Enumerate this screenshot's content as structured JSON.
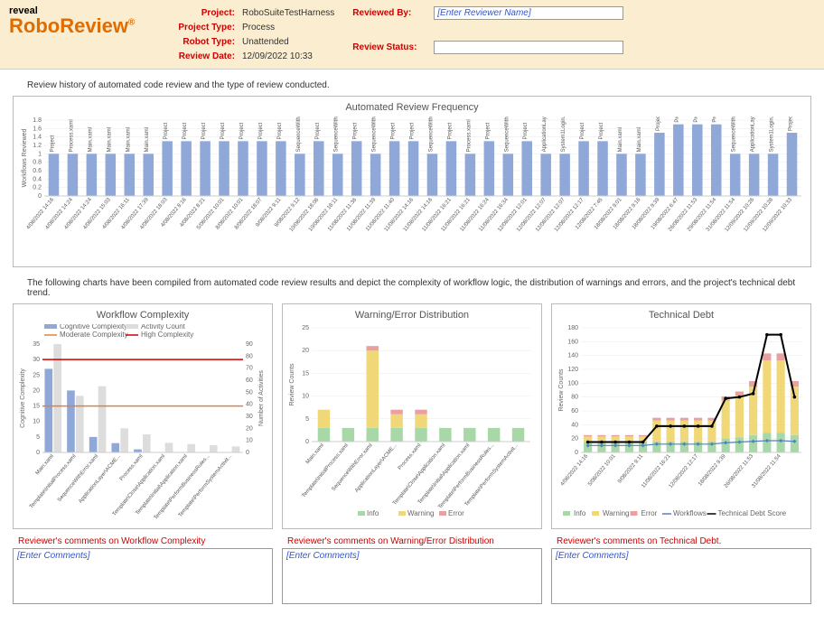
{
  "header": {
    "logo_small": "reveal",
    "logo_big": "RoboReview",
    "logo_mark": "®",
    "labels": {
      "project": "Project:",
      "project_type": "Project Type:",
      "robot_type": "Robot Type:",
      "review_date": "Review Date:",
      "reviewed_by": "Reviewed By:",
      "review_status": "Review Status:"
    },
    "values": {
      "project": "RoboSuiteTestHarness",
      "project_type": "Process",
      "robot_type": "Unattended",
      "review_date": "12/09/2022 10:33"
    },
    "reviewed_by_placeholder": "[Enter Reviewer Name]",
    "review_status_placeholder": ""
  },
  "section1_text": "Review history of automated code review and the type of review conducted.",
  "section2_text": "The following charts have been compiled from automated code review results and depict the complexity of workflow logic, the distribution of warnings and errors, and the project's technical debt trend.",
  "freq_chart": {
    "title": "Automated Review Frequency",
    "ylabel": "Workflows Reviewed",
    "ylim": [
      0,
      1.8
    ],
    "yticks": [
      0,
      0.2,
      0.4,
      0.6,
      0.8,
      1.0,
      1.2,
      1.4,
      1.6,
      1.8
    ],
    "bar_color": "#8fa8d8",
    "grid_color": "#e8e8e8",
    "axis_color": "#cccccc",
    "bars": [
      {
        "date": "4/08/2022 14:16",
        "label": "Project",
        "val": 1.0
      },
      {
        "date": "4/08/2022 14:24",
        "label": "Process.xaml",
        "val": 1.0
      },
      {
        "date": "4/08/2022 14:24",
        "label": "Main.xaml",
        "val": 1.0
      },
      {
        "date": "4/08/2022 15:03",
        "label": "Main.xaml",
        "val": 1.0
      },
      {
        "date": "4/08/2022 16:11",
        "label": "Main.xaml",
        "val": 1.0
      },
      {
        "date": "4/08/2022 17:39",
        "label": "Main.xaml",
        "val": 1.0
      },
      {
        "date": "4/08/2022 18:03",
        "label": "Project",
        "val": 1.3
      },
      {
        "date": "4/08/2022 8:16",
        "label": "Project",
        "val": 1.3
      },
      {
        "date": "4/08/2022 8:21",
        "label": "Project",
        "val": 1.3
      },
      {
        "date": "5/08/2022 10:01",
        "label": "Project",
        "val": 1.3
      },
      {
        "date": "8/08/2022 10:01",
        "label": "Project",
        "val": 1.3
      },
      {
        "date": "8/08/2022 18:07",
        "label": "Project",
        "val": 1.3
      },
      {
        "date": "9/08/2022 9:11",
        "label": "Project",
        "val": 1.3
      },
      {
        "date": "9/08/2022 9:12",
        "label": "SequenceWithError.xaml",
        "val": 1.0
      },
      {
        "date": "10/08/2022 18:06",
        "label": "Project",
        "val": 1.3
      },
      {
        "date": "10/08/2022 18:11",
        "label": "SequenceWithError.xaml",
        "val": 1.0
      },
      {
        "date": "11/08/2022 11:36",
        "label": "Project",
        "val": 1.3
      },
      {
        "date": "11/08/2022 11:39",
        "label": "SequenceWithError.xaml",
        "val": 1.0
      },
      {
        "date": "11/08/2022 11:40",
        "label": "Project",
        "val": 1.3
      },
      {
        "date": "11/08/2022 14:16",
        "label": "Project",
        "val": 1.3
      },
      {
        "date": "11/08/2022 14:16",
        "label": "SequenceWithError.xaml",
        "val": 1.0
      },
      {
        "date": "11/08/2022 16:21",
        "label": "Project",
        "val": 1.3
      },
      {
        "date": "11/08/2022 16:21",
        "label": "Process.xaml",
        "val": 1.0
      },
      {
        "date": "11/08/2022 16:24",
        "label": "Project",
        "val": 1.3
      },
      {
        "date": "11/08/2022 16:34",
        "label": "SequenceWithError.xaml",
        "val": 1.0
      },
      {
        "date": "12/08/2022 12:01",
        "label": "Project",
        "val": 1.3
      },
      {
        "date": "12/08/2022 12:07",
        "label": "ApplicationLayer\\ACME...",
        "val": 1.0
      },
      {
        "date": "12/08/2022 12:07",
        "label": "System1Login.xaml",
        "val": 1.0
      },
      {
        "date": "12/08/2022 12:17",
        "label": "Project",
        "val": 1.3
      },
      {
        "date": "12/08/2022 7:45",
        "label": "Project",
        "val": 1.3
      },
      {
        "date": "18/08/2022 9:01",
        "label": "Main.xaml",
        "val": 1.0
      },
      {
        "date": "18/08/2022 9:16",
        "label": "Main.xaml",
        "val": 1.0
      },
      {
        "date": "18/08/2022 9:39",
        "label": "Project",
        "val": 1.5
      },
      {
        "date": "19/08/2022 6:47",
        "label": "Project",
        "val": 1.7
      },
      {
        "date": "26/08/2022 11:53",
        "label": "Project",
        "val": 1.7
      },
      {
        "date": "29/08/2022 11:54",
        "label": "Project",
        "val": 1.7
      },
      {
        "date": "31/08/2022 11:54",
        "label": "SequenceWithError.xaml",
        "val": 1.0
      },
      {
        "date": "12/09/2022 10:26",
        "label": "ApplicationLayer\\ACME...",
        "val": 1.0
      },
      {
        "date": "12/09/2022 10:28",
        "label": "System1Login.xaml",
        "val": 1.0
      },
      {
        "date": "12/09/2022 10:33",
        "label": "Project",
        "val": 1.5
      }
    ]
  },
  "complexity_chart": {
    "title": "Workflow Complexity",
    "ylabel_left": "Cognitive Complexity",
    "ylabel_right": "Number of Activities",
    "ylim_left": [
      0,
      35
    ],
    "yticks_left": [
      0,
      5,
      10,
      15,
      20,
      25,
      30,
      35
    ],
    "ylim_right": [
      0,
      90
    ],
    "yticks_right": [
      0,
      10,
      20,
      30,
      40,
      50,
      60,
      70,
      80,
      90
    ],
    "legend": [
      {
        "label": "Cognitive Complexity",
        "color": "#8fa8d8",
        "type": "bar"
      },
      {
        "label": "Activity Count",
        "color": "#dddddd",
        "type": "bar"
      },
      {
        "label": "Moderate Complexity",
        "color": "#e08040",
        "type": "line"
      },
      {
        "label": "High Complexity",
        "color": "#cc0000",
        "type": "line"
      }
    ],
    "moderate_line": 15,
    "high_line": 30,
    "axis_color": "#cccccc",
    "bars": [
      {
        "label": "Main.xaml",
        "cog": 27,
        "act": 90
      },
      {
        "label": "Template\\InitialProcess.xaml",
        "cog": 20,
        "act": 47
      },
      {
        "label": "SequenceWithError.xaml",
        "cog": 5,
        "act": 55
      },
      {
        "label": "ApplicationLayer\\ACME...",
        "cog": 3,
        "act": 20
      },
      {
        "label": "Process.xaml",
        "cog": 1,
        "act": 15
      },
      {
        "label": "Template\\Close\\Application.xaml",
        "cog": 0,
        "act": 8
      },
      {
        "label": "Template\\Initial\\Application.xaml",
        "cog": 0,
        "act": 7
      },
      {
        "label": "Template\\PerformBusinessRules...",
        "cog": 0,
        "act": 6
      },
      {
        "label": "Template\\PerformSystemActivit...",
        "cog": 0,
        "act": 5
      }
    ]
  },
  "warning_chart": {
    "title": "Warning/Error Distribution",
    "ylabel": "Review Counts",
    "ylim": [
      0,
      25
    ],
    "yticks": [
      0,
      5,
      10,
      15,
      20,
      25
    ],
    "legend": [
      {
        "label": "Info",
        "color": "#a8d8a8"
      },
      {
        "label": "Warning",
        "color": "#f0d878"
      },
      {
        "label": "Error",
        "color": "#e8a0a0"
      }
    ],
    "axis_color": "#cccccc",
    "grid_color": "#e8e8e8",
    "bars": [
      {
        "label": "Main.xaml",
        "info": 3,
        "warn": 4,
        "err": 0
      },
      {
        "label": "Template\\InitialProcess.xaml",
        "info": 3,
        "warn": 0,
        "err": 0
      },
      {
        "label": "SequenceWithError.xaml",
        "info": 3,
        "warn": 17,
        "err": 1
      },
      {
        "label": "ApplicationLayer\\ACME...",
        "info": 3,
        "warn": 3,
        "err": 1
      },
      {
        "label": "Process.xaml",
        "info": 3,
        "warn": 3,
        "err": 1
      },
      {
        "label": "Template\\Close\\Application.xaml",
        "info": 3,
        "warn": 0,
        "err": 0
      },
      {
        "label": "Template\\Initial\\Application.xaml",
        "info": 3,
        "warn": 0,
        "err": 0
      },
      {
        "label": "Template\\PerformBusinessRules...",
        "info": 3,
        "warn": 0,
        "err": 0
      },
      {
        "label": "Template\\PerformSystemActivit...",
        "info": 3,
        "warn": 0,
        "err": 0
      }
    ]
  },
  "debt_chart": {
    "title": "Technical Debt",
    "ylabel": "Review Counts",
    "ylim": [
      0,
      180
    ],
    "yticks": [
      0,
      20,
      40,
      60,
      80,
      100,
      120,
      140,
      160,
      180
    ],
    "legend": [
      {
        "label": "Info",
        "color": "#a8d8a8",
        "type": "bar"
      },
      {
        "label": "Warning",
        "color": "#f0d878",
        "type": "bar"
      },
      {
        "label": "Error",
        "color": "#e8a0a0",
        "type": "bar"
      },
      {
        "label": "Workflows",
        "color": "#5080c0",
        "type": "line"
      },
      {
        "label": "Technical Debt Score",
        "color": "#000000",
        "type": "line"
      }
    ],
    "axis_color": "#cccccc",
    "grid_color": "#e8e8e8",
    "points": [
      {
        "date": "4/08/2022 14:16",
        "info": 15,
        "warn": 8,
        "err": 2,
        "wf": 10,
        "score": 15
      },
      {
        "date": "4/08/2022 8:26",
        "info": 15,
        "warn": 8,
        "err": 2,
        "wf": 10,
        "score": 15
      },
      {
        "date": "5/08/2022 10:01",
        "info": 15,
        "warn": 8,
        "err": 2,
        "wf": 10,
        "score": 15
      },
      {
        "date": "8/08/2022 18:07",
        "info": 15,
        "warn": 8,
        "err": 2,
        "wf": 10,
        "score": 15
      },
      {
        "date": "9/08/2022 9:11",
        "info": 15,
        "warn": 8,
        "err": 2,
        "wf": 10,
        "score": 15
      },
      {
        "date": "11/08/2022 11:40",
        "info": 16,
        "warn": 30,
        "err": 4,
        "wf": 12,
        "score": 38
      },
      {
        "date": "11/08/2022 16:21",
        "info": 16,
        "warn": 30,
        "err": 4,
        "wf": 12,
        "score": 38
      },
      {
        "date": "11/08/2022 16:24",
        "info": 16,
        "warn": 30,
        "err": 4,
        "wf": 12,
        "score": 38
      },
      {
        "date": "12/08/2022 12:17",
        "info": 16,
        "warn": 30,
        "err": 4,
        "wf": 12,
        "score": 38
      },
      {
        "date": "12/08/2022 7:45",
        "info": 16,
        "warn": 30,
        "err": 4,
        "wf": 12,
        "score": 38
      },
      {
        "date": "18/08/2022 9:39",
        "info": 20,
        "warn": 55,
        "err": 6,
        "wf": 14,
        "score": 78
      },
      {
        "date": "19/08/2022 6:47",
        "info": 22,
        "warn": 60,
        "err": 6,
        "wf": 15,
        "score": 80
      },
      {
        "date": "26/08/2022 11:53",
        "info": 25,
        "warn": 70,
        "err": 8,
        "wf": 16,
        "score": 85
      },
      {
        "date": "29/08/2022 11:54",
        "info": 28,
        "warn": 105,
        "err": 10,
        "wf": 17,
        "score": 170
      },
      {
        "date": "31/08/2022 11:54",
        "info": 28,
        "warn": 105,
        "err": 10,
        "wf": 17,
        "score": 170
      },
      {
        "date": "12/09/2022 8:29",
        "info": 25,
        "warn": 70,
        "err": 8,
        "wf": 16,
        "score": 80
      }
    ]
  },
  "comments": {
    "complexity": {
      "title": "Reviewer's comments on Workflow Complexity",
      "placeholder": "[Enter Comments]"
    },
    "warning": {
      "title": "Reviewer's comments on Warning/Error Distribution",
      "placeholder": "[Enter Comments]"
    },
    "debt": {
      "title": "Reviewer's comments on Technical Debt.",
      "placeholder": "[Enter Comments]"
    }
  }
}
